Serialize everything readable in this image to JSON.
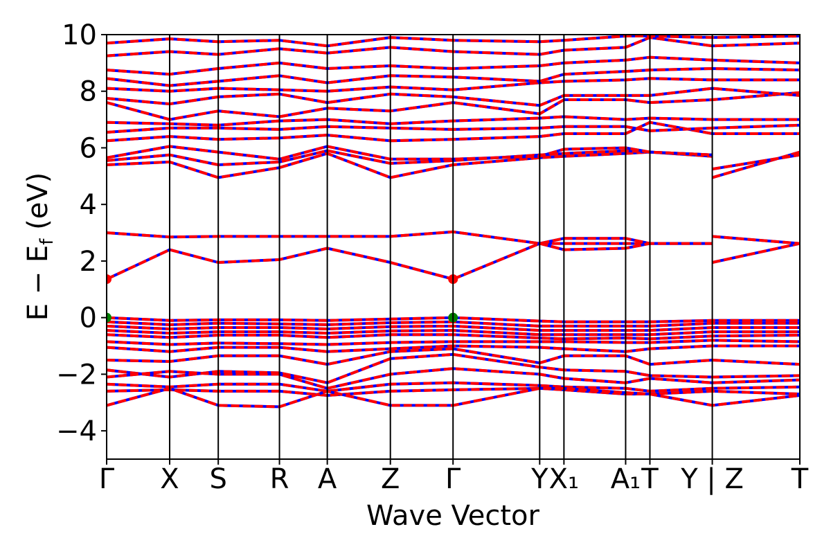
{
  "chart_data": {
    "type": "line",
    "title": "",
    "xlabel": "Wave Vector",
    "ylabel": "E − E",
    "ylabel_sub": "f",
    "ylabel_unit": " (eV)",
    "ylim": [
      -5,
      10
    ],
    "yticks": [
      -4,
      -2,
      0,
      2,
      4,
      6,
      8,
      10
    ],
    "ytick_labels": [
      "−4",
      "−2",
      "0",
      "2",
      "4",
      "6",
      "8",
      "10"
    ],
    "grid": false,
    "kpoint_positions": [
      0,
      0.0909,
      0.161,
      0.2493,
      0.3183,
      0.4093,
      0.4997,
      0.6247,
      0.6597,
      0.7487,
      0.7837,
      0.8737,
      1.0
    ],
    "kpoint_labels": [
      "Γ",
      "X",
      "S",
      "R",
      "A",
      "Z",
      "Γ",
      "Y",
      "X₁",
      "A₁",
      "T",
      "Y | Z",
      "T"
    ],
    "segment_break_after": 11,
    "series_colors": {
      "spin_up": "#0000ff",
      "spin_down": "#ff0000"
    },
    "markers": [
      {
        "kpoint": "Γ",
        "x": 0,
        "energy": 1.36,
        "color": "#ff0000"
      },
      {
        "kpoint": "Γ",
        "x": 0.4997,
        "energy": 1.36,
        "color": "#ff0000"
      },
      {
        "kpoint": "Γ",
        "x": 0,
        "energy": 0.0,
        "color": "#008000"
      },
      {
        "kpoint": "Γ",
        "x": 0.4997,
        "energy": 0.0,
        "color": "#008000"
      }
    ],
    "bands": [
      {
        "x": [
          0,
          0.0909,
          0.161,
          0.2493,
          0.3183,
          0.4093,
          0.4997
        ],
        "y": [
          1.36,
          2.4,
          1.95,
          2.05,
          2.45,
          1.95,
          1.36
        ]
      },
      {
        "x": [
          0.4997,
          0.6247,
          0.6597,
          0.7487,
          0.7837,
          0.8737
        ],
        "y": [
          1.36,
          2.62,
          2.62,
          2.62,
          2.62,
          2.62
        ]
      },
      {
        "x": [
          0.8737,
          1.0
        ],
        "y": [
          1.95,
          2.62
        ]
      },
      {
        "x": [
          0,
          0.0909,
          0.161,
          0.2493,
          0.3183,
          0.4093,
          0.4997,
          0.6247,
          0.6597,
          0.7487,
          0.7837,
          0.8737
        ],
        "y": [
          3.0,
          2.85,
          2.87,
          2.87,
          2.87,
          2.87,
          3.03,
          2.62,
          2.8,
          2.8,
          2.62,
          2.62
        ]
      },
      {
        "x": [
          0.6247,
          0.6597,
          0.7487,
          0.7837
        ],
        "y": [
          2.62,
          2.4,
          2.45,
          2.62
        ]
      },
      {
        "x": [
          0.8737,
          1.0
        ],
        "y": [
          2.87,
          2.62
        ]
      },
      {
        "x": [
          0,
          0.0909,
          0.161,
          0.2493,
          0.3183,
          0.4093,
          0.4997,
          0.6247,
          0.6597,
          0.7487,
          0.7837,
          0.8737
        ],
        "y": [
          5.4,
          5.5,
          4.95,
          5.3,
          5.8,
          4.95,
          5.4,
          5.65,
          5.7,
          5.8,
          5.85,
          5.7
        ]
      },
      {
        "x": [
          0,
          0.0909,
          0.161,
          0.2493,
          0.3183,
          0.4093,
          0.4997,
          0.6247,
          0.6597,
          0.7487,
          0.7837,
          0.8737
        ],
        "y": [
          5.55,
          5.75,
          5.4,
          5.5,
          5.9,
          5.45,
          5.55,
          5.75,
          5.8,
          5.9,
          5.85,
          5.75
        ]
      },
      {
        "x": [
          0,
          0.0909,
          0.161,
          0.2493,
          0.3183,
          0.4093,
          0.4997,
          0.6247,
          0.6597,
          0.7487,
          0.7837,
          0.8737
        ],
        "y": [
          5.65,
          6.05,
          5.85,
          5.6,
          6.05,
          5.6,
          5.6,
          5.7,
          5.95,
          6.0,
          5.85,
          5.75
        ]
      },
      {
        "x": [
          0.8737,
          1.0
        ],
        "y": [
          4.95,
          5.85
        ]
      },
      {
        "x": [
          0.8737,
          1.0
        ],
        "y": [
          5.25,
          5.75
        ]
      },
      {
        "x": [
          0,
          0.0909,
          0.161,
          0.2493,
          0.3183,
          0.4093,
          0.4997,
          0.6247,
          0.6597,
          0.7487,
          0.7837,
          0.8737,
          1.0
        ],
        "y": [
          6.25,
          6.4,
          6.3,
          6.35,
          6.45,
          6.25,
          6.3,
          6.4,
          6.5,
          6.5,
          6.9,
          6.5,
          6.5
        ]
      },
      {
        "x": [
          0,
          0.0909,
          0.161,
          0.2493,
          0.3183,
          0.4093,
          0.4997,
          0.6247,
          0.6597,
          0.7487,
          0.7837,
          0.8737,
          1.0
        ],
        "y": [
          6.55,
          6.7,
          6.7,
          6.65,
          6.75,
          6.7,
          6.65,
          6.7,
          6.75,
          6.75,
          6.6,
          6.7,
          6.8
        ]
      },
      {
        "x": [
          0,
          0.0909,
          0.161,
          0.2493,
          0.3183,
          0.4093,
          0.4997,
          0.6247,
          0.6597,
          0.7487,
          0.7837,
          0.8737,
          1.0
        ],
        "y": [
          6.9,
          6.85,
          6.8,
          6.95,
          7.0,
          6.85,
          6.95,
          7.05,
          7.1,
          7.0,
          7.05,
          7.0,
          7.0
        ]
      },
      {
        "x": [
          0,
          0.0909,
          0.161,
          0.2493,
          0.3183,
          0.4093,
          0.4997,
          0.6247,
          0.6597,
          0.7487,
          0.7837,
          0.8737,
          1.0
        ],
        "y": [
          7.6,
          7.0,
          7.3,
          7.1,
          7.4,
          7.3,
          7.6,
          7.2,
          7.7,
          7.7,
          7.6,
          7.7,
          7.95
        ]
      },
      {
        "x": [
          0,
          0.0909,
          0.161,
          0.2493,
          0.3183,
          0.4093,
          0.4997,
          0.6247,
          0.6597,
          0.7487,
          0.7837,
          0.8737,
          1.0
        ],
        "y": [
          7.75,
          7.55,
          7.8,
          7.9,
          7.6,
          7.9,
          7.8,
          7.5,
          7.85,
          7.85,
          7.85,
          8.1,
          7.85
        ]
      },
      {
        "x": [
          0,
          0.0909,
          0.161,
          0.2493,
          0.3183,
          0.4093,
          0.4997,
          0.6247,
          0.6597,
          0.7487,
          0.7837,
          0.8737,
          1.0
        ],
        "y": [
          8.1,
          8.0,
          8.1,
          8.05,
          8.0,
          8.15,
          8.05,
          8.3,
          8.35,
          8.4,
          8.45,
          8.4,
          8.4
        ]
      },
      {
        "x": [
          0,
          0.0909,
          0.161,
          0.2493,
          0.3183,
          0.4093,
          0.4997,
          0.6247,
          0.6597,
          0.7487,
          0.7837,
          0.8737,
          1.0
        ],
        "y": [
          8.45,
          8.2,
          8.35,
          8.55,
          8.3,
          8.55,
          8.5,
          8.35,
          8.6,
          8.7,
          8.75,
          8.8,
          8.75
        ]
      },
      {
        "x": [
          0,
          0.0909,
          0.161,
          0.2493,
          0.3183,
          0.4093,
          0.4997,
          0.6247,
          0.6597,
          0.7487,
          0.7837,
          0.8737,
          1.0
        ],
        "y": [
          8.75,
          8.6,
          8.8,
          9.0,
          8.8,
          8.9,
          8.8,
          8.9,
          9.0,
          9.1,
          9.2,
          9.1,
          9.0
        ]
      },
      {
        "x": [
          0,
          0.0909,
          0.161,
          0.2493,
          0.3183,
          0.4093,
          0.4997,
          0.6247,
          0.6597,
          0.7487,
          0.7837,
          0.8737,
          1.0
        ],
        "y": [
          9.25,
          9.4,
          9.3,
          9.5,
          9.35,
          9.55,
          9.4,
          9.3,
          9.45,
          9.55,
          9.9,
          9.6,
          9.7
        ]
      },
      {
        "x": [
          0,
          0.0909,
          0.161,
          0.2493,
          0.3183,
          0.4093,
          0.4997,
          0.6247,
          0.6597,
          0.7487,
          0.7837,
          0.8737,
          1.0
        ],
        "y": [
          9.7,
          9.85,
          9.75,
          9.8,
          9.6,
          9.9,
          9.8,
          9.75,
          9.8,
          9.95,
          9.95,
          9.9,
          9.95
        ]
      },
      {
        "x": [
          0,
          0.0909,
          0.161,
          0.2493,
          0.3183,
          0.4093,
          0.4997,
          0.6247,
          0.6597,
          0.7487,
          0.7837,
          0.8737,
          1.0
        ],
        "y": [
          0.0,
          -0.1,
          -0.08,
          -0.08,
          -0.1,
          -0.05,
          0.0,
          -0.12,
          -0.15,
          -0.15,
          -0.15,
          -0.1,
          -0.1
        ]
      },
      {
        "x": [
          0,
          0.0909,
          0.161,
          0.2493,
          0.3183,
          0.4093,
          0.4997,
          0.6247,
          0.6597,
          0.7487,
          0.7837,
          0.8737,
          1.0
        ],
        "y": [
          -0.15,
          -0.25,
          -0.2,
          -0.22,
          -0.25,
          -0.18,
          -0.15,
          -0.3,
          -0.3,
          -0.3,
          -0.3,
          -0.2,
          -0.2
        ]
      },
      {
        "x": [
          0,
          0.0909,
          0.161,
          0.2493,
          0.3183,
          0.4093,
          0.4997,
          0.6247,
          0.6597,
          0.7487,
          0.7837,
          0.8737,
          1.0
        ],
        "y": [
          -0.3,
          -0.4,
          -0.35,
          -0.35,
          -0.4,
          -0.32,
          -0.3,
          -0.45,
          -0.45,
          -0.45,
          -0.45,
          -0.35,
          -0.35
        ]
      },
      {
        "x": [
          0,
          0.0909,
          0.161,
          0.2493,
          0.3183,
          0.4093,
          0.4997,
          0.6247,
          0.6597,
          0.7487,
          0.7837,
          0.8737,
          1.0
        ],
        "y": [
          -0.45,
          -0.55,
          -0.5,
          -0.5,
          -0.55,
          -0.47,
          -0.45,
          -0.6,
          -0.6,
          -0.6,
          -0.6,
          -0.5,
          -0.5
        ]
      },
      {
        "x": [
          0,
          0.0909,
          0.161,
          0.2493,
          0.3183,
          0.4093,
          0.4997,
          0.6247,
          0.6597,
          0.7487,
          0.7837,
          0.8737,
          1.0
        ],
        "y": [
          -0.6,
          -0.7,
          -0.62,
          -0.62,
          -0.7,
          -0.6,
          -0.6,
          -0.72,
          -0.75,
          -0.72,
          -0.75,
          -0.65,
          -0.62
        ]
      },
      {
        "x": [
          0,
          0.0909,
          0.161,
          0.2493,
          0.3183,
          0.4093,
          0.4997,
          0.6247,
          0.6597,
          0.7487,
          0.7837,
          0.8737,
          1.0
        ],
        "y": [
          -0.85,
          -0.95,
          -0.9,
          -0.92,
          -0.95,
          -0.88,
          -0.85,
          -0.85,
          -0.85,
          -0.88,
          -0.88,
          -0.8,
          -0.85
        ]
      },
      {
        "x": [
          0,
          0.0909,
          0.161,
          0.2493,
          0.3183,
          0.4093,
          0.4997,
          0.6247,
          0.6597,
          0.7487,
          0.7837,
          0.8737,
          1.0
        ],
        "y": [
          -1.05,
          -1.2,
          -1.05,
          -1.05,
          -1.2,
          -1.1,
          -1.0,
          -1.05,
          -1.1,
          -1.2,
          -1.1,
          -1.0,
          -1.0
        ]
      },
      {
        "x": [
          0,
          0.0909,
          0.161,
          0.2493,
          0.3183,
          0.4093,
          0.4997,
          0.6247,
          0.6597,
          0.7487,
          0.7837,
          0.8737,
          1.0
        ],
        "y": [
          -1.5,
          -1.55,
          -1.35,
          -1.35,
          -1.65,
          -1.2,
          -1.1,
          -1.6,
          -1.35,
          -1.35,
          -1.65,
          -1.5,
          -1.65
        ]
      },
      {
        "x": [
          0,
          0.0909,
          0.161,
          0.2493,
          0.3183,
          0.4093,
          0.4997,
          0.6247,
          0.6597,
          0.7487,
          0.7837,
          0.8737,
          1.0
        ],
        "y": [
          -1.85,
          -2.1,
          -1.9,
          -1.95,
          -2.3,
          -1.45,
          -1.3,
          -1.75,
          -1.85,
          -1.9,
          -2.05,
          -2.1,
          -2.05
        ]
      },
      {
        "x": [
          0,
          0.0909,
          0.161,
          0.2493,
          0.3183,
          0.4093,
          0.4997,
          0.6247,
          0.6597,
          0.7487,
          0.7837,
          0.8737,
          1.0
        ],
        "y": [
          -2.1,
          -1.9,
          -2.0,
          -2.0,
          -2.5,
          -2.0,
          -1.8,
          -2.0,
          -2.15,
          -2.3,
          -2.15,
          -2.3,
          -2.2
        ]
      },
      {
        "x": [
          0,
          0.0909,
          0.161,
          0.2493,
          0.3183,
          0.4093,
          0.4997,
          0.6247,
          0.6597,
          0.7487,
          0.7837,
          0.8737,
          1.0
        ],
        "y": [
          -2.35,
          -2.45,
          -2.35,
          -2.35,
          -2.6,
          -2.35,
          -2.3,
          -2.4,
          -2.45,
          -2.5,
          -2.6,
          -2.5,
          -2.45
        ]
      },
      {
        "x": [
          0,
          0.0909,
          0.161,
          0.2493,
          0.3183,
          0.4093,
          0.4997,
          0.6247,
          0.6597,
          0.7487,
          0.7837,
          0.8737,
          1.0
        ],
        "y": [
          -2.6,
          -2.55,
          -2.6,
          -2.6,
          -2.75,
          -2.6,
          -2.55,
          -2.5,
          -2.55,
          -2.7,
          -2.7,
          -2.6,
          -2.7
        ]
      },
      {
        "x": [
          0,
          0.0909,
          0.161,
          0.2493,
          0.3183,
          0.4093,
          0.4997,
          0.6247,
          0.6597,
          0.7487,
          0.7837,
          0.8737,
          1.0
        ],
        "y": [
          -3.1,
          -2.5,
          -3.1,
          -3.15,
          -2.6,
          -3.1,
          -3.1,
          -2.5,
          -2.5,
          -2.65,
          -2.7,
          -3.1,
          -2.75
        ]
      }
    ]
  }
}
